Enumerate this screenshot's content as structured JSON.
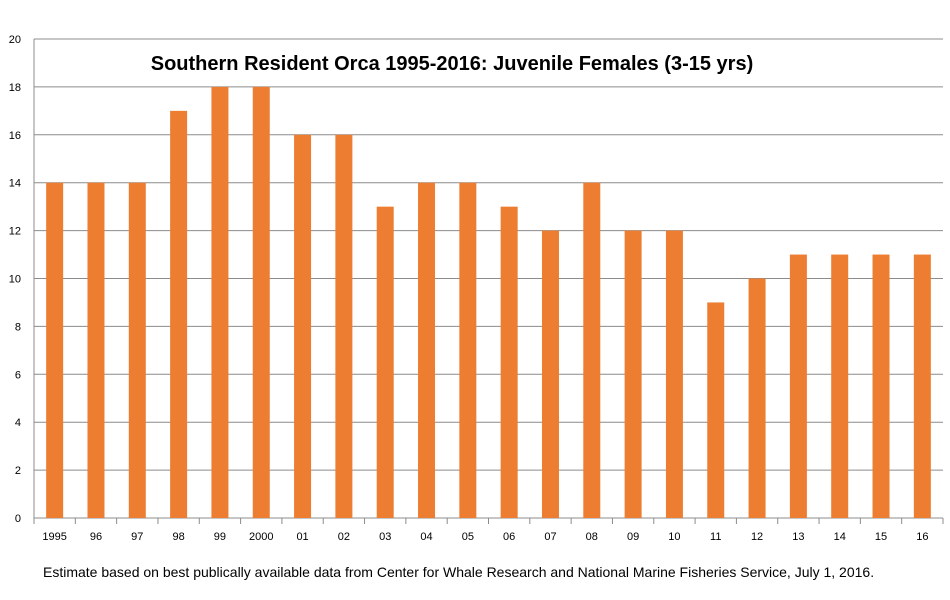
{
  "chart_data": {
    "type": "bar",
    "title": "Southern Resident Orca 1995-2016:  Juvenile Females (3-15 yrs)",
    "xlabel": "",
    "ylabel": "",
    "categories": [
      "1995",
      "96",
      "97",
      "98",
      "99",
      "2000",
      "01",
      "02",
      "03",
      "04",
      "05",
      "06",
      "07",
      "08",
      "09",
      "10",
      "11",
      "12",
      "13",
      "14",
      "15",
      "16"
    ],
    "values": [
      14,
      14,
      14,
      17,
      18,
      18,
      16,
      16,
      13,
      14,
      14,
      13,
      12,
      14,
      12,
      12,
      9,
      10,
      11,
      11,
      11,
      11
    ],
    "ylim": [
      0,
      20
    ],
    "yticks": [
      0,
      2,
      4,
      6,
      8,
      10,
      12,
      14,
      16,
      18,
      20
    ],
    "grid": true,
    "legend": "none",
    "bar_color": "#ED7D31",
    "grid_color": "#8C8C8C"
  },
  "footnote": "Estimate based on best publically available data from Center for Whale Research and National Marine Fisheries Service, July 1, 2016."
}
